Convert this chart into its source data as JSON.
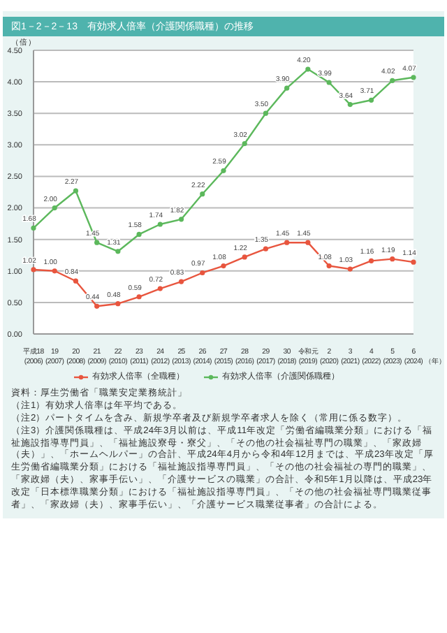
{
  "chart_data": {
    "type": "line",
    "title": "図1－2－2－13　有効求人倍率（介護関係職種）の推移",
    "ylabel": "（倍）",
    "xlabel": "（年）",
    "categories": [
      "平成18\n(2006)",
      "19\n(2007)",
      "20\n(2008)",
      "21\n(2009)",
      "22\n(2010)",
      "23\n(2011)",
      "24\n(2012)",
      "25\n(2013)",
      "26\n(2014)",
      "27\n(2015)",
      "28\n(2016)",
      "29\n(2017)",
      "30\n(2018)",
      "令和元\n(2019)",
      "2\n(2020)",
      "3\n(2021)",
      "4\n(2022)",
      "5\n(2023)",
      "6\n(2024)"
    ],
    "series": [
      {
        "name": "有効求人倍率（全職種）",
        "color": "#e8553e",
        "values": [
          1.02,
          1.0,
          0.84,
          0.44,
          0.48,
          0.59,
          0.72,
          0.83,
          0.97,
          1.08,
          1.22,
          1.35,
          1.45,
          1.45,
          1.08,
          1.03,
          1.16,
          1.19,
          1.14
        ],
        "value_labels": [
          "1.02",
          "1.00",
          "0.84",
          "0.44",
          "0.48",
          "0.59",
          "0.72",
          "0.83",
          "0.97",
          "1.08",
          "1.22",
          "1.35",
          "1.45",
          "1.45",
          "1.08",
          "1.03",
          "1.16",
          "1.19",
          "1.14"
        ]
      },
      {
        "name": "有効求人倍率（介護関係職種）",
        "color": "#5cb85c",
        "values": [
          1.68,
          2.0,
          2.27,
          1.45,
          1.31,
          1.58,
          1.74,
          1.82,
          2.22,
          2.59,
          3.02,
          3.5,
          3.9,
          4.2,
          3.99,
          3.64,
          3.71,
          4.02,
          4.07
        ],
        "value_labels": [
          "1.68",
          "2.00",
          "2.27",
          "1.45",
          "1.31",
          "1.58",
          "1.74",
          "1.82",
          "2.22",
          "2.59",
          "3.02",
          "3.50",
          "3.90",
          "4.20",
          "3.99",
          "3.64",
          "3.71",
          "4.02",
          "4.07"
        ]
      }
    ],
    "ylim": [
      0,
      4.5
    ],
    "yticks": [
      {
        "value": 0,
        "label": "0.00"
      },
      {
        "value": 0.5,
        "label": "0.50"
      },
      {
        "value": 1,
        "label": "1.00"
      },
      {
        "value": 1.5,
        "label": "1.50"
      },
      {
        "value": 2,
        "label": "2.00"
      },
      {
        "value": 2.5,
        "label": "2.50"
      },
      {
        "value": 3,
        "label": "3.00"
      },
      {
        "value": 3.5,
        "label": "3.50"
      },
      {
        "value": 4,
        "label": "4.00"
      },
      {
        "value": 4.5,
        "label": "4.50"
      }
    ],
    "grid": "y",
    "legend": "bottom",
    "marker": "circle",
    "line_style": "solid",
    "annotations": [
      "資料：厚生労働省「職業安定業務統計」",
      "（注1）有効求人倍率は年平均である。",
      "（注2）パートタイムを含み、新規学卒者及び新規学卒者求人を除く（常用に係る数字）。",
      "（注3）介護関係職種は、平成24年3月以前は、平成11年改定「労働省編職業分類」における「福祉施設指導専門員」、「福祉施設寮母・寮父」、「その他の社会福祉専門の職業」、「家政婦（夫）」、「ホームヘルパー」の合計、平成24年4月から令和4年12月までは、平成23年改定「厚生労働省編職業分類」における「福祉施設指導専門員」、「その他の社会福祉の専門的職業」、「家政婦（夫）、家事手伝い」、「介護サービスの職業」の合計、令和5年1月以降は、平成23年改定「日本標準職業分類」における「福祉施設指導専門員」、「その他の社会福祉専門職業従事者」、「家政婦（夫）、家事手伝い」、「介護サービス職業従事者」の合計による。"
    ]
  }
}
